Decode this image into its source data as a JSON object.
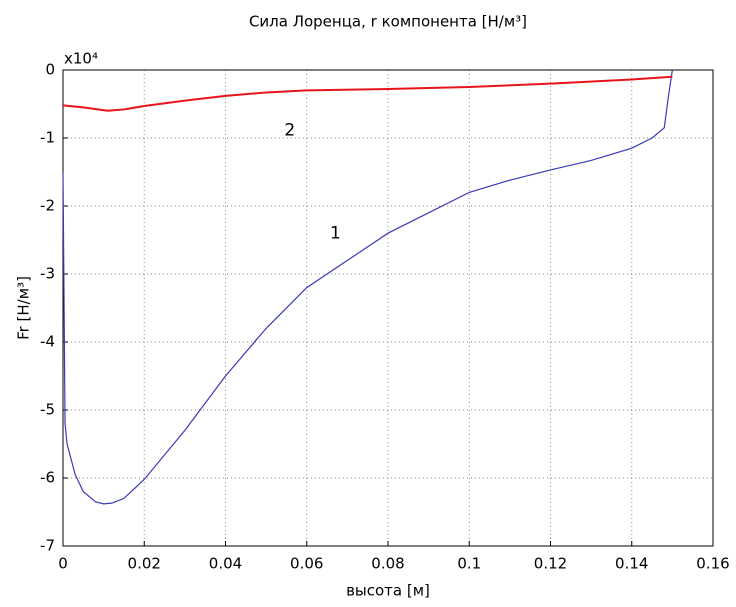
{
  "chart_data": {
    "type": "line",
    "title": "Сила Лоренца, r компонента [Н/м³]",
    "x_label": "высота [м]",
    "y_label": "Fr [Н/м³]",
    "y_multiplier": "x10⁴",
    "xlim": [
      0,
      0.16
    ],
    "xticks": [
      0,
      0.02,
      0.04,
      0.06,
      0.08,
      0.1,
      0.12,
      0.14,
      0.16
    ],
    "ylim": [
      -7,
      0
    ],
    "yticks": [
      -7,
      -6,
      -5,
      -4,
      -3,
      -2,
      -1,
      0
    ],
    "grid": true,
    "series": [
      {
        "name": "1",
        "color": "#3a3ab8",
        "x": [
          0,
          0.0005,
          0.001,
          0.003,
          0.005,
          0.008,
          0.01,
          0.012,
          0.015,
          0.02,
          0.03,
          0.04,
          0.05,
          0.06,
          0.07,
          0.08,
          0.09,
          0.1,
          0.11,
          0.12,
          0.13,
          0.14,
          0.145,
          0.148,
          0.149,
          0.15
        ],
        "values": [
          -1.5,
          -5.2,
          -5.5,
          -5.95,
          -6.2,
          -6.35,
          -6.38,
          -6.37,
          -6.3,
          -6.02,
          -5.3,
          -4.5,
          -3.8,
          -3.2,
          -2.8,
          -2.4,
          -2.1,
          -1.8,
          -1.62,
          -1.47,
          -1.33,
          -1.15,
          -1.0,
          -0.85,
          -0.4,
          0
        ]
      },
      {
        "name": "2",
        "color": "#e8141b",
        "x": [
          0,
          0.005,
          0.011,
          0.015,
          0.02,
          0.03,
          0.04,
          0.05,
          0.06,
          0.08,
          0.1,
          0.12,
          0.14,
          0.15
        ],
        "values": [
          -0.52,
          -0.55,
          -0.6,
          -0.58,
          -0.53,
          -0.45,
          -0.38,
          -0.33,
          -0.3,
          -0.28,
          -0.25,
          -0.2,
          -0.14,
          -0.1
        ]
      }
    ]
  }
}
